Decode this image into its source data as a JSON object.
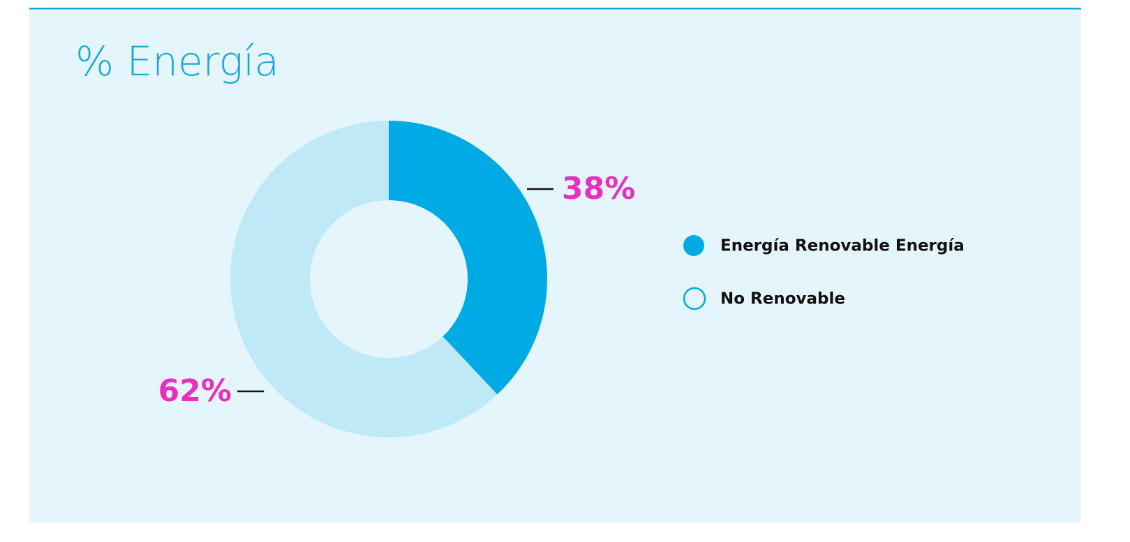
{
  "chart_data": {
    "type": "pie",
    "title": "% Energía",
    "categories": [
      "Energía Renovable Energía",
      "No Renovable"
    ],
    "values": [
      38,
      62
    ],
    "value_labels": [
      "38%",
      "62%"
    ],
    "colors": [
      "#00aae4",
      "#c0e9f8"
    ]
  }
}
